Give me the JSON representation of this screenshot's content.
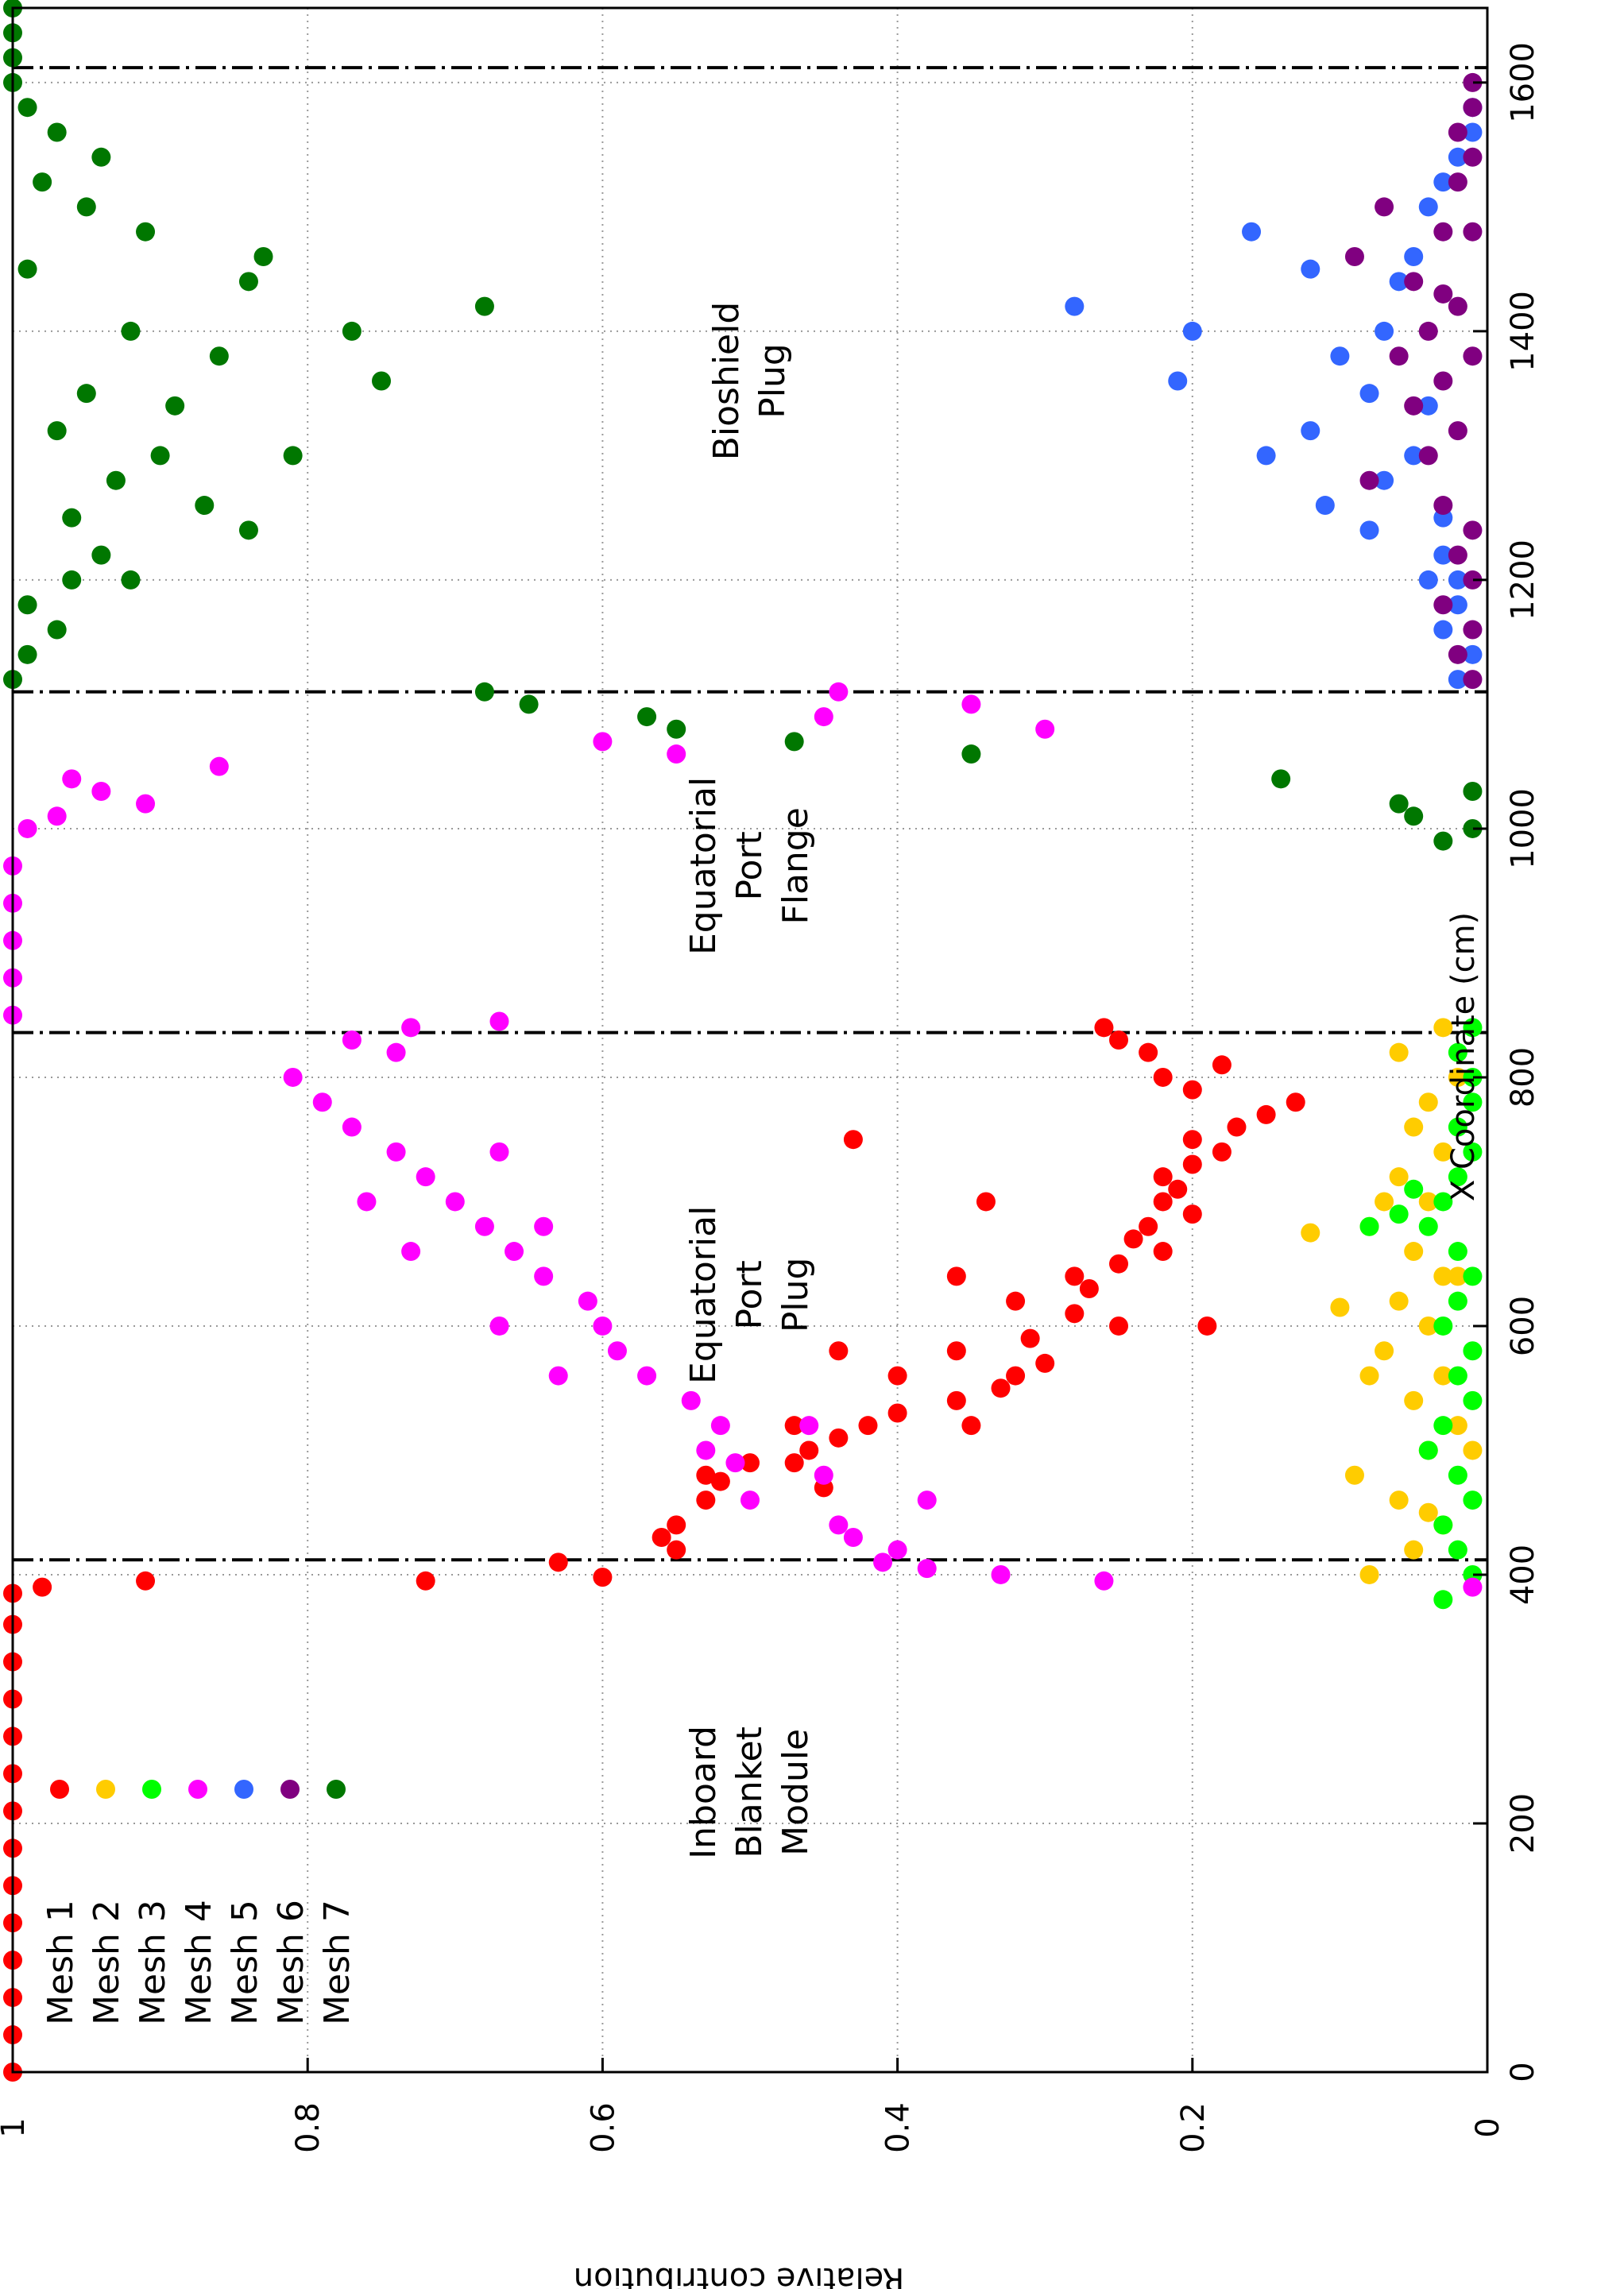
{
  "chart_data": {
    "type": "scatter",
    "orientation": "rotated-90-clockwise",
    "xlabel": "X Coordinate (cm)",
    "ylabel": "Relative contribution",
    "xlim": [
      0,
      1660
    ],
    "ylim": [
      0,
      1
    ],
    "x_ticks": [
      "0",
      "200",
      "400",
      "600",
      "800",
      "1000",
      "1200",
      "1400",
      "1600"
    ],
    "y_ticks": [
      "0",
      "0.2",
      "0.4",
      "0.6",
      "0.8",
      "1"
    ],
    "grid": true,
    "legend_placement": "top-left",
    "boundaries_x": [
      412,
      836,
      1110,
      1612
    ],
    "regions": [
      {
        "lines": [
          "Inboard",
          "Blanket",
          "Module"
        ],
        "x": 225,
        "y": 0.5
      },
      {
        "lines": [
          "Equatorial",
          "Port",
          "Plug"
        ],
        "x": 625,
        "y": 0.5
      },
      {
        "lines": [
          "Equatorial",
          "Port",
          "Flange"
        ],
        "x": 970,
        "y": 0.5
      },
      {
        "lines": [
          "Bioshield",
          "Plug"
        ],
        "x": 1360,
        "y": 0.5
      }
    ],
    "series": [
      {
        "name": "Mesh 1",
        "color": "#ff0000",
        "points": [
          [
            0,
            1
          ],
          [
            30,
            1
          ],
          [
            60,
            1
          ],
          [
            90,
            1
          ],
          [
            120,
            1
          ],
          [
            150,
            1
          ],
          [
            180,
            1
          ],
          [
            210,
            1
          ],
          [
            240,
            1
          ],
          [
            270,
            1
          ],
          [
            300,
            1
          ],
          [
            330,
            1
          ],
          [
            360,
            1
          ],
          [
            385,
            1
          ],
          [
            390,
            0.98
          ],
          [
            395,
            0.91
          ],
          [
            395,
            0.72
          ],
          [
            398,
            0.6
          ],
          [
            410,
            0.63
          ],
          [
            420,
            0.55
          ],
          [
            430,
            0.56
          ],
          [
            440,
            0.55
          ],
          [
            460,
            0.53
          ],
          [
            470,
            0.45
          ],
          [
            475,
            0.52
          ],
          [
            480,
            0.53
          ],
          [
            490,
            0.47
          ],
          [
            490,
            0.5
          ],
          [
            500,
            0.46
          ],
          [
            510,
            0.44
          ],
          [
            520,
            0.47
          ],
          [
            520,
            0.42
          ],
          [
            530,
            0.4
          ],
          [
            540,
            0.36
          ],
          [
            550,
            0.33
          ],
          [
            560,
            0.32
          ],
          [
            570,
            0.3
          ],
          [
            580,
            0.36
          ],
          [
            590,
            0.31
          ],
          [
            600,
            0.25
          ],
          [
            610,
            0.28
          ],
          [
            620,
            0.32
          ],
          [
            630,
            0.27
          ],
          [
            640,
            0.28
          ],
          [
            650,
            0.25
          ],
          [
            660,
            0.22
          ],
          [
            670,
            0.24
          ],
          [
            680,
            0.23
          ],
          [
            690,
            0.2
          ],
          [
            700,
            0.22
          ],
          [
            710,
            0.21
          ],
          [
            720,
            0.22
          ],
          [
            730,
            0.2
          ],
          [
            740,
            0.18
          ],
          [
            750,
            0.2
          ],
          [
            760,
            0.17
          ],
          [
            770,
            0.15
          ],
          [
            780,
            0.13
          ],
          [
            790,
            0.2
          ],
          [
            800,
            0.22
          ],
          [
            810,
            0.18
          ],
          [
            820,
            0.23
          ],
          [
            830,
            0.25
          ],
          [
            840,
            0.26
          ],
          [
            600,
            0.19
          ],
          [
            640,
            0.36
          ],
          [
            700,
            0.34
          ],
          [
            750,
            0.43
          ],
          [
            520,
            0.35
          ],
          [
            560,
            0.4
          ],
          [
            580,
            0.44
          ]
        ]
      },
      {
        "name": "Mesh 2",
        "color": "#ffcc00",
        "points": [
          [
            400,
            0.08
          ],
          [
            420,
            0.05
          ],
          [
            440,
            0.03
          ],
          [
            460,
            0.06
          ],
          [
            480,
            0.09
          ],
          [
            500,
            0.04
          ],
          [
            520,
            0.02
          ],
          [
            540,
            0.05
          ],
          [
            560,
            0.03
          ],
          [
            580,
            0.07
          ],
          [
            600,
            0.04
          ],
          [
            620,
            0.06
          ],
          [
            640,
            0.03
          ],
          [
            660,
            0.05
          ],
          [
            680,
            0.08
          ],
          [
            700,
            0.04
          ],
          [
            720,
            0.06
          ],
          [
            740,
            0.03
          ],
          [
            760,
            0.05
          ],
          [
            780,
            0.04
          ],
          [
            800,
            0.02
          ],
          [
            820,
            0.06
          ],
          [
            840,
            0.03
          ],
          [
            615,
            0.1
          ],
          [
            675,
            0.12
          ],
          [
            700,
            0.07
          ],
          [
            640,
            0.02
          ],
          [
            560,
            0.08
          ],
          [
            500,
            0.01
          ],
          [
            450,
            0.04
          ]
        ]
      },
      {
        "name": "Mesh 3",
        "color": "#00ff00",
        "points": [
          [
            380,
            0.03
          ],
          [
            400,
            0.01
          ],
          [
            420,
            0.02
          ],
          [
            440,
            0.03
          ],
          [
            460,
            0.01
          ],
          [
            480,
            0.02
          ],
          [
            500,
            0.04
          ],
          [
            520,
            0.03
          ],
          [
            540,
            0.01
          ],
          [
            560,
            0.02
          ],
          [
            580,
            0.01
          ],
          [
            600,
            0.03
          ],
          [
            620,
            0.02
          ],
          [
            640,
            0.01
          ],
          [
            660,
            0.02
          ],
          [
            680,
            0.04
          ],
          [
            700,
            0.03
          ],
          [
            720,
            0.02
          ],
          [
            740,
            0.01
          ],
          [
            760,
            0.02
          ],
          [
            780,
            0.01
          ],
          [
            800,
            0.01
          ],
          [
            820,
            0.02
          ],
          [
            840,
            0.01
          ],
          [
            680,
            0.08
          ],
          [
            690,
            0.06
          ],
          [
            710,
            0.05
          ]
        ]
      },
      {
        "name": "Mesh 4",
        "color": "#ff00ff",
        "points": [
          [
            390,
            0.01
          ],
          [
            395,
            0.26
          ],
          [
            400,
            0.33
          ],
          [
            405,
            0.38
          ],
          [
            410,
            0.41
          ],
          [
            420,
            0.4
          ],
          [
            430,
            0.43
          ],
          [
            440,
            0.44
          ],
          [
            460,
            0.38
          ],
          [
            460,
            0.5
          ],
          [
            480,
            0.45
          ],
          [
            490,
            0.51
          ],
          [
            500,
            0.53
          ],
          [
            520,
            0.52
          ],
          [
            540,
            0.54
          ],
          [
            560,
            0.57
          ],
          [
            580,
            0.59
          ],
          [
            600,
            0.6
          ],
          [
            620,
            0.61
          ],
          [
            640,
            0.64
          ],
          [
            660,
            0.66
          ],
          [
            680,
            0.68
          ],
          [
            700,
            0.7
          ],
          [
            720,
            0.72
          ],
          [
            740,
            0.74
          ],
          [
            760,
            0.77
          ],
          [
            780,
            0.79
          ],
          [
            800,
            0.81
          ],
          [
            820,
            0.74
          ],
          [
            830,
            0.77
          ],
          [
            840,
            0.73
          ],
          [
            845,
            0.67
          ],
          [
            850,
            1
          ],
          [
            880,
            1
          ],
          [
            910,
            1
          ],
          [
            940,
            1
          ],
          [
            970,
            1
          ],
          [
            1000,
            0.99
          ],
          [
            1010,
            0.97
          ],
          [
            1020,
            0.91
          ],
          [
            1030,
            0.94
          ],
          [
            1040,
            0.96
          ],
          [
            1050,
            0.86
          ],
          [
            1060,
            0.55
          ],
          [
            1070,
            0.6
          ],
          [
            1080,
            0.3
          ],
          [
            1090,
            0.45
          ],
          [
            1100,
            0.35
          ],
          [
            1110,
            0.44
          ],
          [
            660,
            0.73
          ],
          [
            700,
            0.76
          ],
          [
            600,
            0.67
          ],
          [
            740,
            0.67
          ],
          [
            680,
            0.64
          ],
          [
            560,
            0.63
          ],
          [
            520,
            0.46
          ]
        ]
      },
      {
        "name": "Mesh 5",
        "color": "#3366ff",
        "points": [
          [
            1120,
            0.02
          ],
          [
            1140,
            0.01
          ],
          [
            1160,
            0.03
          ],
          [
            1180,
            0.02
          ],
          [
            1200,
            0.04
          ],
          [
            1220,
            0.03
          ],
          [
            1240,
            0.08
          ],
          [
            1260,
            0.11
          ],
          [
            1280,
            0.07
          ],
          [
            1300,
            0.15
          ],
          [
            1320,
            0.12
          ],
          [
            1340,
            0.04
          ],
          [
            1360,
            0.21
          ],
          [
            1380,
            0.1
          ],
          [
            1400,
            0.2
          ],
          [
            1420,
            0.28
          ],
          [
            1440,
            0.06
          ],
          [
            1460,
            0.05
          ],
          [
            1480,
            0.16
          ],
          [
            1500,
            0.04
          ],
          [
            1520,
            0.03
          ],
          [
            1540,
            0.02
          ],
          [
            1560,
            0.01
          ],
          [
            1580,
            0.01
          ],
          [
            1300,
            0.05
          ],
          [
            1350,
            0.08
          ],
          [
            1400,
            0.07
          ],
          [
            1450,
            0.12
          ],
          [
            1250,
            0.03
          ],
          [
            1200,
            0.02
          ]
        ]
      },
      {
        "name": "Mesh 6",
        "color": "#800080",
        "points": [
          [
            1120,
            0.01
          ],
          [
            1140,
            0.02
          ],
          [
            1160,
            0.01
          ],
          [
            1180,
            0.03
          ],
          [
            1200,
            0.01
          ],
          [
            1220,
            0.02
          ],
          [
            1240,
            0.01
          ],
          [
            1260,
            0.03
          ],
          [
            1280,
            0.08
          ],
          [
            1300,
            0.04
          ],
          [
            1320,
            0.02
          ],
          [
            1340,
            0.05
          ],
          [
            1360,
            0.03
          ],
          [
            1380,
            0.06
          ],
          [
            1400,
            0.04
          ],
          [
            1420,
            0.02
          ],
          [
            1440,
            0.05
          ],
          [
            1460,
            0.09
          ],
          [
            1480,
            0.03
          ],
          [
            1500,
            0.07
          ],
          [
            1520,
            0.02
          ],
          [
            1540,
            0.01
          ],
          [
            1560,
            0.02
          ],
          [
            1580,
            0.01
          ],
          [
            1600,
            0.01
          ],
          [
            1380,
            0.01
          ],
          [
            1430,
            0.03
          ],
          [
            1480,
            0.01
          ]
        ]
      },
      {
        "name": "Mesh 7",
        "color": "#007700",
        "points": [
          [
            990,
            0.03
          ],
          [
            1000,
            0.01
          ],
          [
            1010,
            0.05
          ],
          [
            1020,
            0.06
          ],
          [
            1030,
            0.01
          ],
          [
            1040,
            0.14
          ],
          [
            1060,
            0.35
          ],
          [
            1070,
            0.47
          ],
          [
            1080,
            0.55
          ],
          [
            1090,
            0.57
          ],
          [
            1100,
            0.65
          ],
          [
            1110,
            0.68
          ],
          [
            1120,
            1
          ],
          [
            1140,
            0.99
          ],
          [
            1160,
            0.97
          ],
          [
            1180,
            0.99
          ],
          [
            1200,
            0.96
          ],
          [
            1220,
            0.94
          ],
          [
            1240,
            0.84
          ],
          [
            1260,
            0.87
          ],
          [
            1280,
            0.93
          ],
          [
            1300,
            0.81
          ],
          [
            1320,
            0.97
          ],
          [
            1340,
            0.89
          ],
          [
            1360,
            0.75
          ],
          [
            1380,
            0.86
          ],
          [
            1400,
            0.77
          ],
          [
            1420,
            0.68
          ],
          [
            1440,
            0.84
          ],
          [
            1460,
            0.83
          ],
          [
            1480,
            0.91
          ],
          [
            1500,
            0.95
          ],
          [
            1520,
            0.98
          ],
          [
            1540,
            0.94
          ],
          [
            1560,
            0.97
          ],
          [
            1580,
            0.99
          ],
          [
            1600,
            1
          ],
          [
            1620,
            1
          ],
          [
            1640,
            1
          ],
          [
            1660,
            1
          ],
          [
            1200,
            0.92
          ],
          [
            1250,
            0.96
          ],
          [
            1300,
            0.9
          ],
          [
            1350,
            0.95
          ],
          [
            1400,
            0.92
          ],
          [
            1450,
            0.99
          ]
        ]
      }
    ]
  }
}
